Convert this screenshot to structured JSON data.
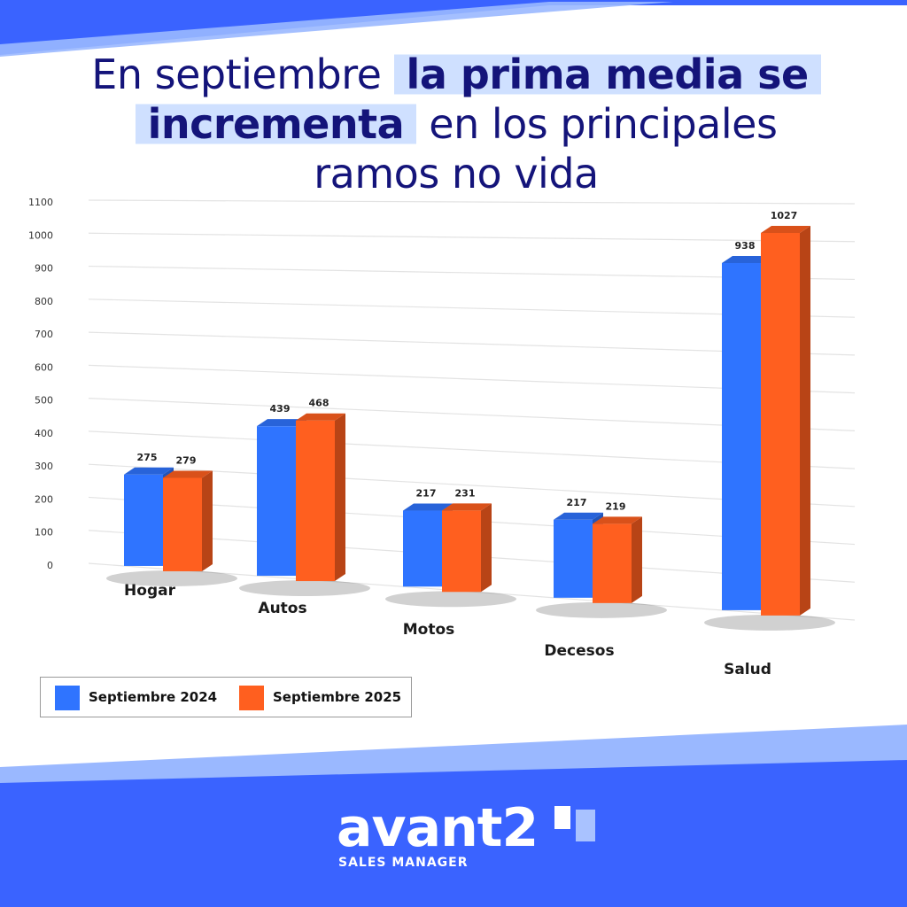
{
  "title": {
    "part1": "En septiembre",
    "highlight1": "la prima media se",
    "highlight2": "incrementa",
    "part2": "en los principales",
    "part3": "ramos no vida"
  },
  "colors": {
    "series_2024": "#2f74ff",
    "series_2025": "#ff5f1f",
    "background": "#3a63ff",
    "title": "#14147a"
  },
  "chart_data": {
    "type": "bar",
    "categories": [
      "Hogar",
      "Autos",
      "Motos",
      "Decesos",
      "Salud"
    ],
    "series": [
      {
        "name": "Septiembre 2024",
        "values": [
          275,
          439,
          217,
          217,
          938
        ]
      },
      {
        "name": "Septiembre 2025",
        "values": [
          279,
          468,
          231,
          219,
          1027
        ]
      }
    ],
    "yticks": [
      "0",
      "100",
      "200",
      "300",
      "400",
      "500",
      "600",
      "700",
      "800",
      "900",
      "1000",
      "1100"
    ],
    "ylim": [
      0,
      1100
    ],
    "grid": true,
    "legend_position": "bottom-left",
    "style": "3d"
  },
  "brand": {
    "name": "avant2",
    "tagline": "SALES MANAGER"
  }
}
